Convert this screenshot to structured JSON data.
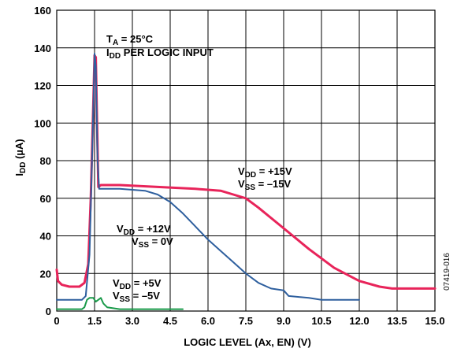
{
  "chart_data": {
    "type": "line",
    "xlabel": "LOGIC LEVEL (Ax, EN) (V)",
    "ylabel": {
      "main": "I",
      "sub": "DD",
      "rest": " (µA)"
    },
    "xlim": [
      0,
      15
    ],
    "ylim": [
      0,
      160
    ],
    "grid": true,
    "x_ticks": [
      "0",
      "1.5",
      "3.0",
      "4.5",
      "6.0",
      "7.5",
      "9.0",
      "10.5",
      "12.0",
      "13.5",
      "15.0"
    ],
    "y_ticks": [
      "0",
      "20",
      "40",
      "60",
      "80",
      "100",
      "120",
      "140",
      "160"
    ],
    "side_label": "07419-016",
    "annotations": {
      "ta": {
        "main": "T",
        "sub": "A",
        "rest": " = 25°C"
      },
      "idd": {
        "main": "I",
        "sub": "DD",
        "rest": " PER LOGIC INPUT"
      },
      "s15_vdd": {
        "main": "V",
        "sub": "DD",
        "rest": " = +15V"
      },
      "s15_vss": {
        "main": "V",
        "sub": "SS",
        "rest": " = –15V"
      },
      "s12_vdd": {
        "main": "V",
        "sub": "DD",
        "rest": " = +12V"
      },
      "s12_vss": {
        "main": "V",
        "sub": "SS",
        "rest": " = 0V"
      },
      "s5_vdd": {
        "main": "V",
        "sub": "DD",
        "rest": " = +5V"
      },
      "s5_vss": {
        "main": "V",
        "sub": "SS",
        "rest": " = –5V"
      }
    },
    "series": [
      {
        "id": "vdd15",
        "color": "#e8245a",
        "points": [
          [
            0,
            22
          ],
          [
            0.05,
            16
          ],
          [
            0.2,
            14
          ],
          [
            0.5,
            13
          ],
          [
            0.9,
            13
          ],
          [
            1.1,
            15
          ],
          [
            1.25,
            25
          ],
          [
            1.35,
            60
          ],
          [
            1.45,
            110
          ],
          [
            1.5,
            136
          ],
          [
            1.55,
            135
          ],
          [
            1.6,
            100
          ],
          [
            1.65,
            66
          ],
          [
            1.75,
            67
          ],
          [
            2.5,
            67
          ],
          [
            4.0,
            66
          ],
          [
            5.5,
            65
          ],
          [
            6.5,
            64
          ],
          [
            7.0,
            62
          ],
          [
            7.5,
            60
          ],
          [
            8.0,
            55
          ],
          [
            9.0,
            44
          ],
          [
            10.0,
            33
          ],
          [
            11.0,
            23
          ],
          [
            12.0,
            16
          ],
          [
            12.8,
            13
          ],
          [
            13.3,
            12
          ],
          [
            14,
            12
          ],
          [
            15,
            12
          ]
        ]
      },
      {
        "id": "vdd12",
        "color": "#2e5f9e",
        "points": [
          [
            0,
            6
          ],
          [
            1.0,
            6
          ],
          [
            1.15,
            8
          ],
          [
            1.3,
            30
          ],
          [
            1.42,
            90
          ],
          [
            1.5,
            137
          ],
          [
            1.55,
            130
          ],
          [
            1.62,
            80
          ],
          [
            1.68,
            65
          ],
          [
            2.5,
            65
          ],
          [
            3.5,
            64
          ],
          [
            4.0,
            62
          ],
          [
            4.5,
            58
          ],
          [
            5.0,
            52
          ],
          [
            5.5,
            45
          ],
          [
            6.0,
            38
          ],
          [
            6.5,
            32
          ],
          [
            7.0,
            26
          ],
          [
            7.5,
            20
          ],
          [
            8.0,
            15
          ],
          [
            8.5,
            12
          ],
          [
            9.0,
            11
          ],
          [
            9.2,
            8
          ],
          [
            10.0,
            7
          ],
          [
            10.5,
            6
          ],
          [
            11.5,
            6
          ],
          [
            12.0,
            6
          ]
        ]
      },
      {
        "id": "vdd5",
        "color": "#1a9a4a",
        "points": [
          [
            0,
            1
          ],
          [
            1.0,
            1
          ],
          [
            1.1,
            2
          ],
          [
            1.2,
            6
          ],
          [
            1.3,
            7
          ],
          [
            1.45,
            7
          ],
          [
            1.55,
            5
          ],
          [
            1.65,
            6
          ],
          [
            1.75,
            7
          ],
          [
            1.85,
            4
          ],
          [
            2.0,
            2
          ],
          [
            2.5,
            1
          ],
          [
            3.5,
            1
          ],
          [
            5.0,
            1
          ]
        ]
      }
    ]
  }
}
